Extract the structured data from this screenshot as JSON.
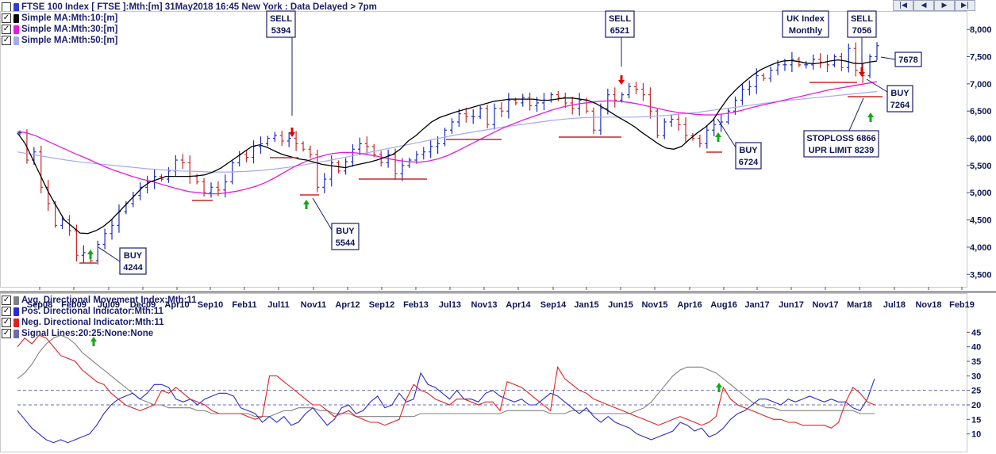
{
  "header": {
    "title": "FTSE 100 Index [ FTSE ]:Mth:[m]  31May2018 16:45 New York : Data Delayed > 7pm",
    "nav_buttons": [
      "|◀",
      "◀",
      "▶",
      "▶|"
    ]
  },
  "colors": {
    "price_bars": "#1f2dbd",
    "down_bars": "#c62828",
    "ma10": "#000000",
    "ma30": "#e81ad9",
    "ma50": "#a7a9f0",
    "adx": "#808080",
    "pdi": "#2a2ad0",
    "ndi": "#e02020",
    "signal": "#6b6bb0",
    "arrow_up": "#14a814",
    "arrow_down": "#e00000"
  },
  "price_legend": [
    {
      "label": "FTSE 100 Index [ FTSE ]:Mth:[m]  31May2018 16:45 New York : Data Delayed > 7pm",
      "color": "#2f3fd0",
      "check": ""
    },
    {
      "label": "Simple MA:Mth:10:[m]",
      "color": "#000000",
      "check": "✓"
    },
    {
      "label": "Simple MA:Mth:30:[m]",
      "color": "#e81ad9",
      "check": "✓"
    },
    {
      "label": "Simple MA:Mth:50:[m]",
      "color": "#a7a9f0",
      "check": "✓"
    }
  ],
  "indicator_legend": [
    {
      "label": "Avg. Directional Movement Index:Mth:11",
      "color": "#808080",
      "check": "✓"
    },
    {
      "label": "Pos. Directional Indicator:Mth:11",
      "color": "#2a2ad0",
      "check": "✓"
    },
    {
      "label": "Neg. Directional Indicator:Mth:11",
      "color": "#e02020",
      "check": "✓"
    },
    {
      "label": "Signal Lines:20:25:None:None",
      "color": "#6b6bb0",
      "check": "✓"
    }
  ],
  "chart_data": [
    {
      "type": "line",
      "panel": "price",
      "x_labels": [
        "Sep08",
        "Feb09",
        "Jul09",
        "Dec09",
        "Apr10",
        "Sep10",
        "Feb11",
        "Jul11",
        "Nov11",
        "Apr12",
        "Sep12",
        "Feb13",
        "Jul13",
        "Nov13",
        "Apr14",
        "Sep14",
        "Jan15",
        "Jun15",
        "Nov15",
        "Apr16",
        "Aug16",
        "Jan17",
        "Jun17",
        "Nov17",
        "Mar18",
        "Jul18",
        "Nov18",
        "Feb19"
      ],
      "y_ticks": [
        "3,500",
        "4,000",
        "4,500",
        "5,000",
        "5,500",
        "6,000",
        "6,500",
        "7,000",
        "7,500",
        "8,000"
      ],
      "ylim": [
        3300,
        8250
      ],
      "close": [
        6100,
        5600,
        5750,
        5100,
        4800,
        4400,
        4500,
        4300,
        3850,
        3900,
        3750,
        4050,
        4250,
        4400,
        4650,
        4800,
        4950,
        5100,
        5200,
        5300,
        5250,
        5400,
        5600,
        5550,
        5300,
        5200,
        5000,
        5100,
        5050,
        5200,
        5550,
        5700,
        5650,
        5850,
        5900,
        6000,
        6050,
        5950,
        6000,
        5900,
        5800,
        5700,
        5100,
        5250,
        5550,
        5400,
        5570,
        5800,
        5900,
        5850,
        5700,
        5550,
        5700,
        5350,
        5500,
        5600,
        5700,
        5750,
        5850,
        5900,
        6150,
        6300,
        6450,
        6400,
        6400,
        6550,
        6250,
        6550,
        6500,
        6700,
        6650,
        6750,
        6600,
        6650,
        6700,
        6800,
        6750,
        6650,
        6550,
        6700,
        6500,
        6150,
        6550,
        6800,
        6700,
        6800,
        6950,
        6900,
        6800,
        6500,
        6050,
        6300,
        6350,
        6250,
        6050,
        6000,
        5900,
        6150,
        6250,
        6300,
        6500,
        6700,
        6900,
        6950,
        7150,
        7100,
        7250,
        7350,
        7350,
        7450,
        7350,
        7350,
        7450,
        7400,
        7350,
        7500,
        7300,
        7650,
        7250,
        7150,
        7500,
        7700
      ],
      "ma10": [
        6100,
        5900,
        5600,
        5300,
        5000,
        4750,
        4500,
        4380,
        4260,
        4250,
        4300,
        4380,
        4500,
        4650,
        4800,
        4950,
        5100,
        5200,
        5250,
        5300,
        5300,
        5300,
        5300,
        5310,
        5330,
        5380,
        5450,
        5550,
        5650,
        5750,
        5850,
        5880,
        5830,
        5760,
        5700,
        5660,
        5620,
        5600,
        5560,
        5520,
        5500,
        5480,
        5460,
        5500,
        5530,
        5560,
        5600,
        5650,
        5700,
        5800,
        5950,
        6050,
        6180,
        6300,
        6380,
        6430,
        6480,
        6520,
        6560,
        6600,
        6640,
        6680,
        6700,
        6720,
        6720,
        6720,
        6720,
        6700,
        6700,
        6720,
        6740,
        6740,
        6720,
        6700,
        6640,
        6560,
        6470,
        6380,
        6300,
        6210,
        6100,
        6000,
        5900,
        5820,
        5800,
        5850,
        5980,
        6100,
        6200,
        6330,
        6550,
        6750,
        6900,
        7030,
        7150,
        7250,
        7320,
        7380,
        7420,
        7430,
        7410,
        7380,
        7370,
        7390,
        7420,
        7440,
        7420,
        7380,
        7370,
        7400,
        7420
      ],
      "ma30": [
        6130,
        6100,
        6040,
        5960,
        5880,
        5800,
        5720,
        5650,
        5570,
        5490,
        5420,
        5360,
        5300,
        5250,
        5210,
        5160,
        5110,
        5060,
        5020,
        5000,
        4980,
        4980,
        5000,
        5030,
        5070,
        5120,
        5190,
        5280,
        5380,
        5480,
        5560,
        5630,
        5680,
        5720,
        5740,
        5740,
        5720,
        5690,
        5660,
        5620,
        5590,
        5570,
        5560,
        5580,
        5620,
        5680,
        5760,
        5850,
        5940,
        6030,
        6120,
        6200,
        6270,
        6340,
        6400,
        6460,
        6520,
        6570,
        6610,
        6640,
        6660,
        6680,
        6690,
        6680,
        6660,
        6630,
        6590,
        6550,
        6510,
        6480,
        6460,
        6440,
        6430,
        6430,
        6450,
        6480,
        6520,
        6570,
        6610,
        6650,
        6690,
        6730,
        6770,
        6810,
        6850,
        6890,
        6920,
        6950,
        6980,
        7010,
        7040
      ],
      "ma50": [
        5750,
        5700,
        5650,
        5600,
        5560,
        5530,
        5500,
        5470,
        5440,
        5420,
        5400,
        5390,
        5380,
        5380,
        5390,
        5410,
        5440,
        5480,
        5530,
        5580,
        5640,
        5700,
        5760,
        5820,
        5880,
        5940,
        6000,
        6060,
        6110,
        6160,
        6210,
        6250,
        6290,
        6330,
        6360,
        6380,
        6390,
        6390,
        6390,
        6400,
        6420,
        6450,
        6480,
        6520,
        6560,
        6600,
        6640,
        6680,
        6710,
        6740,
        6770,
        6800,
        6830,
        6860
      ],
      "trade_signals": [
        {
          "type": "BUY",
          "label": "BUY",
          "price": "4244"
        },
        {
          "type": "SELL",
          "label": "SELL",
          "price": "5394"
        },
        {
          "type": "BUY",
          "label": "BUY",
          "price": "5544"
        },
        {
          "type": "SELL",
          "label": "SELL",
          "price": "6521"
        },
        {
          "type": "BUY",
          "label": "BUY",
          "price": "6724"
        },
        {
          "type": "SELL",
          "label": "SELL",
          "price": "7056"
        },
        {
          "type": "BUY",
          "label": "BUY",
          "price": "7264"
        }
      ],
      "annotations": {
        "uk_index_title": "UK Index",
        "uk_index_subtitle": "Monthly",
        "last_price": "7678",
        "stoploss": "STOPLOSS 6866",
        "upr_limit": "UPR LIMIT 8239"
      }
    },
    {
      "type": "line",
      "panel": "indicator",
      "x_labels": [
        "Sep08",
        "Feb09",
        "Jul09",
        "Dec09",
        "Apr10",
        "Sep10",
        "Feb11",
        "Jul11",
        "Nov11",
        "Apr12",
        "Sep12",
        "Feb13",
        "Jul13",
        "Nov13",
        "Apr14",
        "Sep14",
        "Jan15",
        "Jun15",
        "Nov15",
        "Apr16",
        "Aug16",
        "Jan17",
        "Jun17",
        "Nov17",
        "Mar18",
        "Jul18",
        "Nov18",
        "Feb19"
      ],
      "y_ticks": [
        "10",
        "15",
        "20",
        "25",
        "30",
        "35",
        "40",
        "45"
      ],
      "ylim": [
        5,
        47
      ],
      "signal_lines": [
        20,
        25
      ],
      "series": [
        {
          "name": "Avg. Directional Movement Index:Mth:11",
          "values": [
            29,
            31,
            34,
            38,
            41,
            43,
            44,
            43,
            41,
            38,
            36,
            34,
            32,
            30,
            28,
            26,
            24,
            22,
            21,
            20,
            20,
            19,
            19,
            19,
            19,
            18,
            18,
            17,
            17,
            17,
            17,
            17,
            17,
            16,
            16,
            16,
            17,
            18,
            18,
            19,
            19,
            19,
            18,
            18,
            17,
            17,
            17,
            16,
            16,
            16,
            16,
            16,
            16,
            16,
            16,
            16,
            17,
            17,
            17,
            17,
            17,
            17,
            17,
            17,
            17,
            17,
            17,
            17,
            18,
            18,
            18,
            18,
            18,
            18,
            17,
            17,
            17,
            18,
            18,
            18,
            17,
            17,
            17,
            17,
            17,
            17,
            18,
            19,
            21,
            24,
            27,
            30,
            32,
            33,
            33,
            33,
            32,
            31,
            29,
            27,
            25,
            23,
            21,
            20,
            19,
            19,
            18,
            18,
            18,
            18,
            18,
            18,
            18,
            18,
            18,
            18,
            18,
            17,
            17,
            17
          ]
        },
        {
          "name": "Pos. Directional Indicator:Mth:11",
          "values": [
            18,
            15,
            12,
            10,
            8,
            7,
            8,
            7,
            8,
            9,
            10,
            13,
            17,
            20,
            22,
            23,
            24,
            22,
            24,
            27,
            27,
            26,
            22,
            21,
            22,
            20,
            22,
            23,
            24,
            24,
            23,
            19,
            18,
            17,
            14,
            16,
            14,
            16,
            13,
            14,
            17,
            19,
            16,
            13,
            15,
            19,
            20,
            17,
            18,
            21,
            23,
            19,
            20,
            24,
            21,
            22,
            31,
            27,
            26,
            24,
            22,
            25,
            22,
            22,
            21,
            24,
            25,
            23,
            22,
            21,
            22,
            20,
            20,
            22,
            24,
            23,
            21,
            19,
            17,
            19,
            16,
            14,
            16,
            14,
            13,
            12,
            10,
            9,
            8,
            9,
            10,
            11,
            14,
            13,
            11,
            12,
            9,
            10,
            12,
            15,
            17,
            18,
            20,
            22,
            22,
            21,
            20,
            22,
            21,
            22,
            23,
            22,
            21,
            22,
            21,
            21,
            19,
            18,
            22,
            29
          ]
        },
        {
          "name": "Neg. Directional Indicator:Mth:11",
          "values": [
            40,
            43,
            41,
            44,
            43,
            40,
            37,
            36,
            35,
            32,
            30,
            28,
            27,
            24,
            22,
            20,
            19,
            18,
            19,
            20,
            25,
            24,
            26,
            24,
            22,
            21,
            20,
            18,
            17,
            17,
            17,
            17,
            16,
            15,
            16,
            30,
            30,
            28,
            26,
            24,
            22,
            20,
            20,
            18,
            16,
            17,
            18,
            16,
            15,
            14,
            14,
            13,
            14,
            15,
            22,
            27,
            25,
            24,
            22,
            21,
            20,
            22,
            22,
            21,
            20,
            21,
            21,
            18,
            28,
            27,
            26,
            24,
            22,
            20,
            18,
            33,
            29,
            27,
            25,
            24,
            22,
            21,
            20,
            19,
            18,
            17,
            16,
            15,
            14,
            13,
            14,
            15,
            16,
            15,
            14,
            13,
            14,
            16,
            26,
            22,
            20,
            19,
            18,
            17,
            16,
            15,
            15,
            14,
            14,
            13,
            13,
            13,
            13,
            12,
            14,
            21,
            26,
            24,
            21,
            20
          ]
        },
        {
          "name": "Signal Lines:20:25:None:None",
          "values": [
            20,
            25
          ]
        }
      ]
    }
  ]
}
